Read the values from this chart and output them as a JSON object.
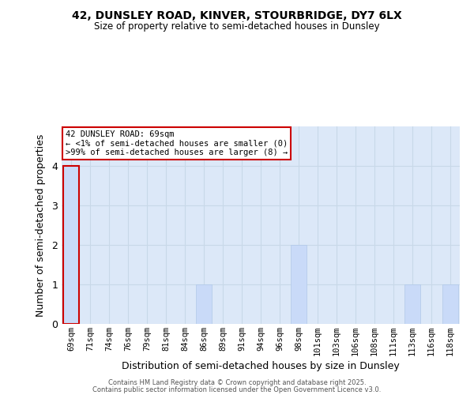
{
  "title1": "42, DUNSLEY ROAD, KINVER, STOURBRIDGE, DY7 6LX",
  "title2": "Size of property relative to semi-detached houses in Dunsley",
  "xlabel": "Distribution of semi-detached houses by size in Dunsley",
  "ylabel": "Number of semi-detached properties",
  "categories": [
    "69sqm",
    "71sqm",
    "74sqm",
    "76sqm",
    "79sqm",
    "81sqm",
    "84sqm",
    "86sqm",
    "89sqm",
    "91sqm",
    "94sqm",
    "96sqm",
    "98sqm",
    "101sqm",
    "103sqm",
    "106sqm",
    "108sqm",
    "111sqm",
    "113sqm",
    "116sqm",
    "118sqm"
  ],
  "values": [
    4,
    0,
    0,
    0,
    0,
    0,
    0,
    1,
    0,
    0,
    0,
    0,
    2,
    0,
    0,
    0,
    0,
    0,
    1,
    0,
    1
  ],
  "bar_color": "#c9daf8",
  "bar_edge_color": "#b0c8e8",
  "highlight_index": 0,
  "highlight_bar_edge_color": "#cc0000",
  "grid_color": "#c8d8e8",
  "background_color": "#dce8f8",
  "ylim": [
    0,
    5
  ],
  "yticks": [
    0,
    1,
    2,
    3,
    4
  ],
  "legend_title": "42 DUNSLEY ROAD: 69sqm",
  "legend_line1": "← <1% of semi-detached houses are smaller (0)",
  "legend_line2": ">99% of semi-detached houses are larger (8) →",
  "footer1": "Contains HM Land Registry data © Crown copyright and database right 2025.",
  "footer2": "Contains public sector information licensed under the Open Government Licence v3.0."
}
